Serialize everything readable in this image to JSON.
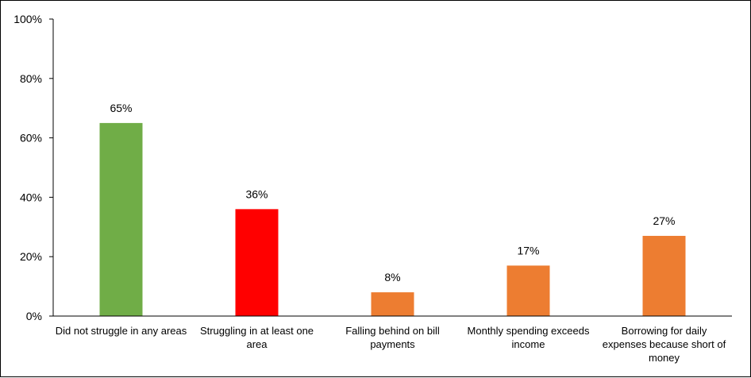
{
  "chart_data": {
    "type": "bar",
    "title": "",
    "xlabel": "",
    "ylabel": "",
    "ylim": [
      0,
      100
    ],
    "yticks": [
      0,
      20,
      40,
      60,
      80,
      100
    ],
    "ytick_labels": [
      "0%",
      "20%",
      "40%",
      "60%",
      "80%",
      "100%"
    ],
    "grid": false,
    "legend": "none",
    "categories": [
      [
        "Did not struggle in any areas"
      ],
      [
        "Struggling in at least one",
        "area"
      ],
      [
        "Falling behind on bill",
        "payments"
      ],
      [
        "Monthly spending exceeds",
        "income"
      ],
      [
        "Borrowing for daily",
        "expenses because short of",
        "money"
      ]
    ],
    "values": [
      65,
      36,
      8,
      17,
      27
    ],
    "value_labels": [
      "65%",
      "36%",
      "8%",
      "17%",
      "27%"
    ],
    "colors": [
      "#70ad47",
      "#ff0000",
      "#ed7d31",
      "#ed7d31",
      "#ed7d31"
    ]
  }
}
